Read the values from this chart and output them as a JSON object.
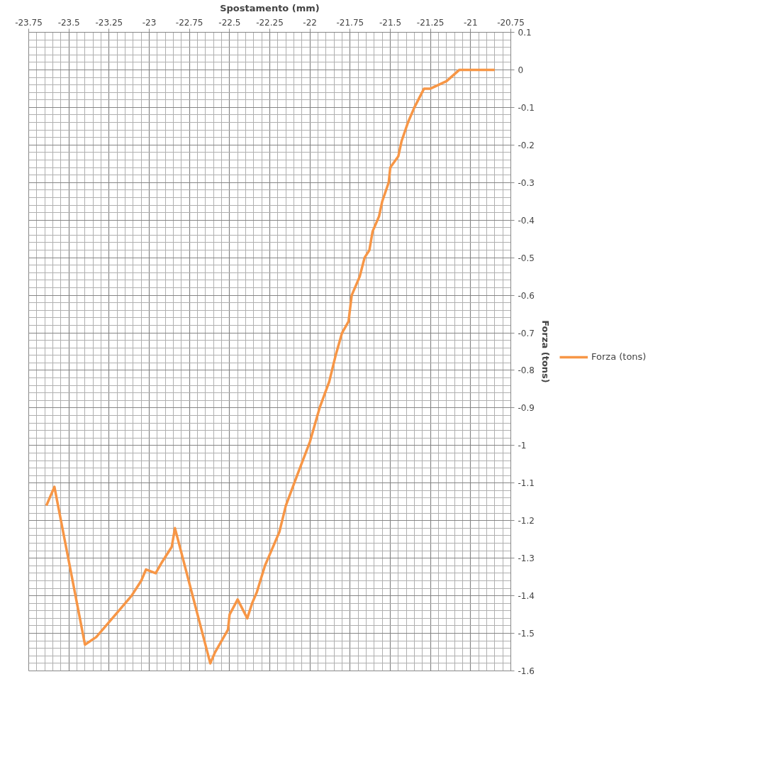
{
  "chart_data": {
    "type": "line",
    "xlabel": "Spostamento (mm)",
    "ylabel": "Forza (tons)",
    "xlim": [
      -23.75,
      -20.75
    ],
    "xticks": [
      -23.75,
      -23.5,
      -23.25,
      -23,
      -22.75,
      -22.5,
      -22.25,
      -22,
      -21.75,
      -21.5,
      -21.25,
      -21,
      -20.75
    ],
    "ylim": [
      -1.6,
      0.1
    ],
    "yticks": [
      0.1,
      0,
      -0.1,
      -0.2,
      -0.3,
      -0.4,
      -0.5,
      -0.6,
      -0.7,
      -0.8,
      -0.9,
      -1,
      -1.1,
      -1.2,
      -1.3,
      -1.4,
      -1.5,
      -1.6
    ],
    "grid": true,
    "legend": "right",
    "marker": "none",
    "line_style": "solid",
    "series": [
      {
        "name": "Forza (tons)",
        "color": "#f79646",
        "x": [
          -23.64,
          -23.59,
          -23.4,
          -23.33,
          -23.19,
          -23.11,
          -23.05,
          -23.02,
          -22.96,
          -22.92,
          -22.86,
          -22.84,
          -22.62,
          -22.59,
          -22.51,
          -22.5,
          -22.45,
          -22.39,
          -22.36,
          -22.33,
          -22.28,
          -22.24,
          -22.19,
          -22.15,
          -22.08,
          -22.0,
          -21.94,
          -21.88,
          -21.84,
          -21.8,
          -21.76,
          -21.74,
          -21.69,
          -21.66,
          -21.63,
          -21.61,
          -21.57,
          -21.55,
          -21.51,
          -21.5,
          -21.45,
          -21.43,
          -21.39,
          -21.35,
          -21.29,
          -21.25,
          -21.15,
          -21.07,
          -21.0,
          -20.85
        ],
        "values": [
          -1.16,
          -1.11,
          -1.53,
          -1.51,
          -1.44,
          -1.4,
          -1.36,
          -1.33,
          -1.34,
          -1.31,
          -1.27,
          -1.22,
          -1.58,
          -1.55,
          -1.49,
          -1.45,
          -1.41,
          -1.46,
          -1.42,
          -1.39,
          -1.32,
          -1.28,
          -1.23,
          -1.16,
          -1.08,
          -0.99,
          -0.9,
          -0.83,
          -0.76,
          -0.7,
          -0.67,
          -0.6,
          -0.55,
          -0.5,
          -0.48,
          -0.43,
          -0.39,
          -0.35,
          -0.3,
          -0.26,
          -0.23,
          -0.19,
          -0.14,
          -0.1,
          -0.05,
          -0.05,
          -0.03,
          0.0,
          0.0,
          0.0
        ]
      }
    ]
  }
}
